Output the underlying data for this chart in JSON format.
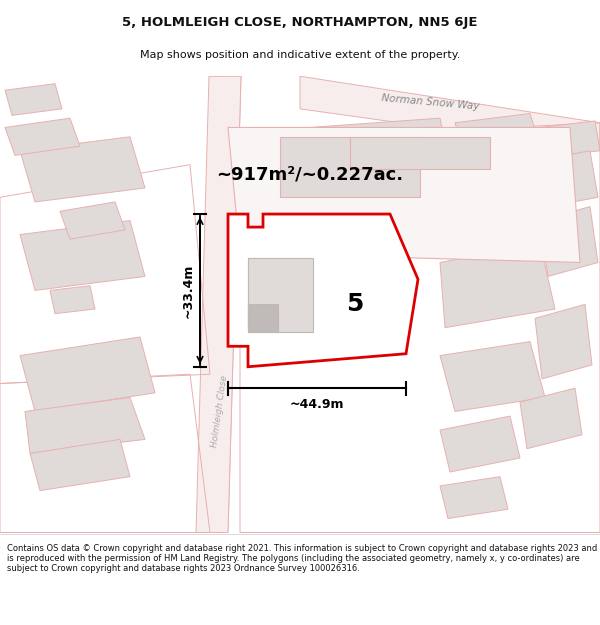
{
  "title": "5, HOLMLEIGH CLOSE, NORTHAMPTON, NN5 6JE",
  "subtitle": "Map shows position and indicative extent of the property.",
  "area_text": "~917m²/~0.227ac.",
  "label_number": "5",
  "dim_width": "~44.9m",
  "dim_height": "~33.4m",
  "road_label": "Norman Snow Way",
  "street_label": "Holmleigh Close",
  "footer": "Contains OS data © Crown copyright and database right 2021. This information is subject to Crown copyright and database rights 2023 and is reproduced with the permission of HM Land Registry. The polygons (including the associated geometry, namely x, y co-ordinates) are subject to Crown copyright and database rights 2023 Ordnance Survey 100026316.",
  "bg_color": "#ffffff",
  "map_bg": "#ffffff",
  "plot_color": "#dd0000",
  "plot_fill": "#ffffff",
  "bldg_fill": "#d8d4d0",
  "bldg_edge": "#999999",
  "road_outline": "#e8b0b0",
  "road_fill": "#f8eded",
  "gray_bldg_fill": "#e0dbd8",
  "gray_bldg_edge": "#c0b8b5"
}
